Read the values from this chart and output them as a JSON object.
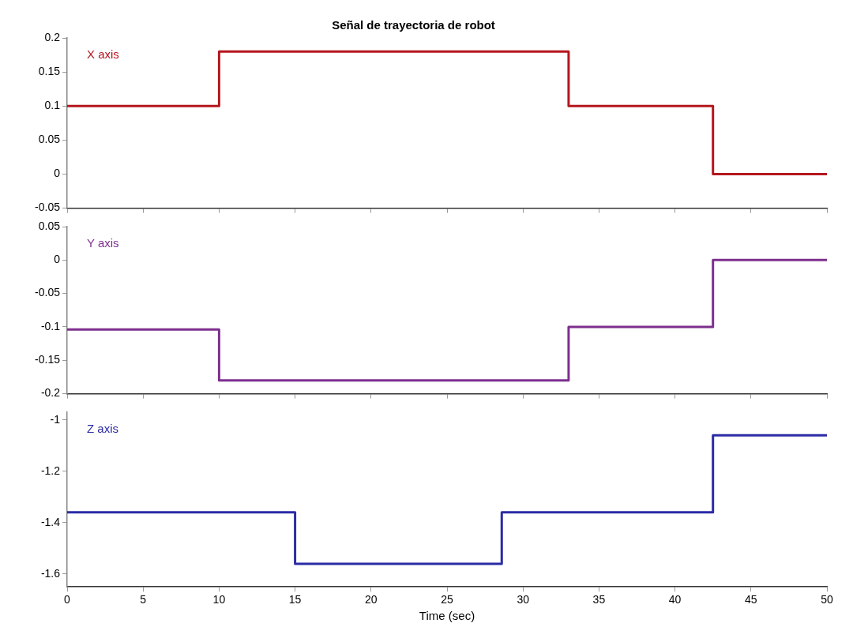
{
  "chart_data": [
    {
      "type": "step",
      "title": "Señal de trayectoria de robot",
      "xlim": [
        0,
        50
      ],
      "xticks": [
        0,
        5,
        10,
        15,
        20,
        25,
        30,
        35,
        40,
        45,
        50
      ],
      "ylim": [
        -0.05,
        0.2
      ],
      "yticks": [
        -0.05,
        0,
        0.05,
        0.1,
        0.15,
        0.2
      ],
      "tick_labels": "y",
      "grid": false,
      "legend": false,
      "series": [
        {
          "name": "X axis",
          "color": "#b5161e",
          "x": [
            0,
            10,
            33,
            42.5,
            50
          ],
          "values": [
            0.1,
            0.18,
            0.1,
            0,
            0
          ]
        }
      ]
    },
    {
      "type": "step",
      "xlim": [
        0,
        50
      ],
      "xticks": [
        0,
        5,
        10,
        15,
        20,
        25,
        30,
        35,
        40,
        45,
        50
      ],
      "ylim": [
        -0.2,
        0.05
      ],
      "yticks": [
        -0.2,
        -0.15,
        -0.1,
        -0.05,
        0,
        0.05
      ],
      "tick_labels": "y",
      "grid": false,
      "legend": false,
      "series": [
        {
          "name": "Y axis",
          "color": "#7e2f8e",
          "x": [
            0,
            10,
            33,
            42.5,
            50
          ],
          "values": [
            -0.104,
            -0.18,
            -0.1,
            0,
            0
          ]
        }
      ]
    },
    {
      "type": "step",
      "xlabel": "Time (sec)",
      "xlim": [
        0,
        50
      ],
      "xticks": [
        0,
        5,
        10,
        15,
        20,
        25,
        30,
        35,
        40,
        45,
        50
      ],
      "ylim": [
        -1.65,
        -0.97
      ],
      "yticks": [
        -1.6,
        -1.4,
        -1.2,
        -1
      ],
      "grid": false,
      "legend": false,
      "series": [
        {
          "name": "Z axis",
          "color": "#2b2ba6",
          "x": [
            0,
            15,
            28.6,
            42.5,
            50
          ],
          "values": [
            -1.36,
            -1.56,
            -1.36,
            -1.06,
            -1.06
          ]
        }
      ]
    }
  ]
}
